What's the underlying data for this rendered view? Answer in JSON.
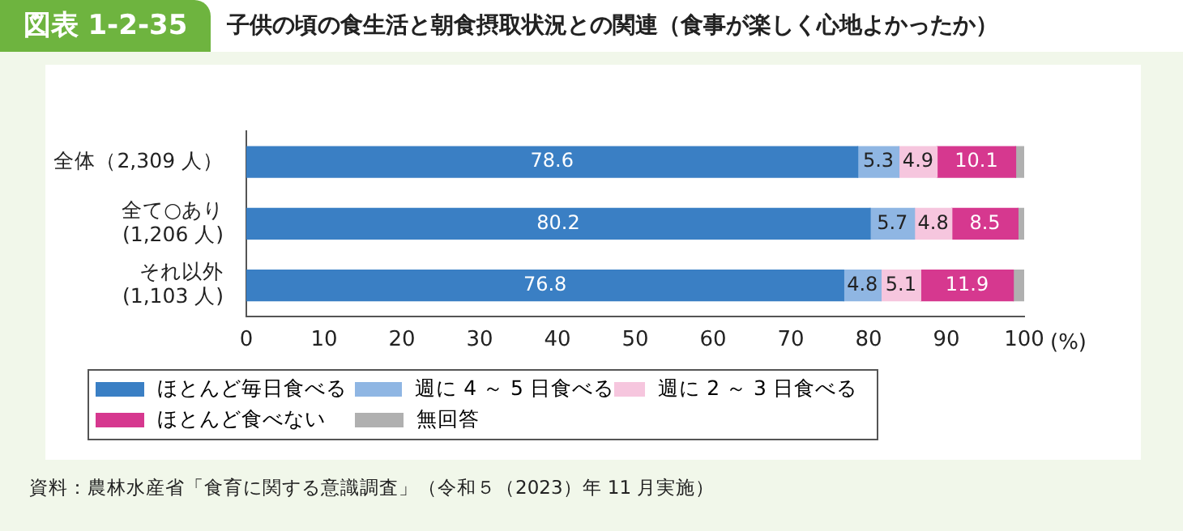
{
  "chart_data": {
    "type": "bar",
    "orientation": "horizontal",
    "stacked": true,
    "title": "図表 1-2-35",
    "subtitle": "子供の頃の食生活と朝食摂取状況との関連（食事が楽しく心地よかったか）",
    "xlabel": "(%)",
    "categories": [
      "全体（2,309 人）",
      "全て○あり\n(1,206 人)",
      "それ以外\n(1,103 人)"
    ],
    "series": [
      {
        "name": "ほとんど毎日食べる",
        "color": "#3a7fc4",
        "values": [
          78.6,
          80.2,
          76.8
        ],
        "value_labels": [
          "78.6",
          "80.2",
          "76.8"
        ]
      },
      {
        "name": "週に 4 ～ 5 日食べる",
        "color": "#8fb6e3",
        "values": [
          5.3,
          5.7,
          4.8
        ],
        "value_labels": [
          "5.3",
          "5.7",
          "4.8"
        ]
      },
      {
        "name": "週に 2 ～ 3 日食べる",
        "color": "#f6c6de",
        "values": [
          4.9,
          4.8,
          5.1
        ],
        "value_labels": [
          "4.9",
          "4.8",
          "5.1"
        ]
      },
      {
        "name": "ほとんど食べない",
        "color": "#d6388f",
        "values": [
          10.1,
          8.5,
          11.9
        ],
        "value_labels": [
          "10.1",
          "8.5",
          "11.9"
        ]
      },
      {
        "name": "無回答",
        "color": "#b0b0b0",
        "values": [
          1.1,
          0.8,
          1.4
        ],
        "value_labels": [
          null,
          null,
          null
        ]
      }
    ],
    "xlim": [
      0,
      100
    ],
    "xticks": [
      0,
      10,
      20,
      30,
      40,
      50,
      60,
      70,
      80,
      90,
      100
    ],
    "grid": false,
    "legend": "bottom",
    "annotations": [
      "資料：農林水産省「食育に関する意識調査」（令和５（2023）年 11 月実施）"
    ]
  }
}
